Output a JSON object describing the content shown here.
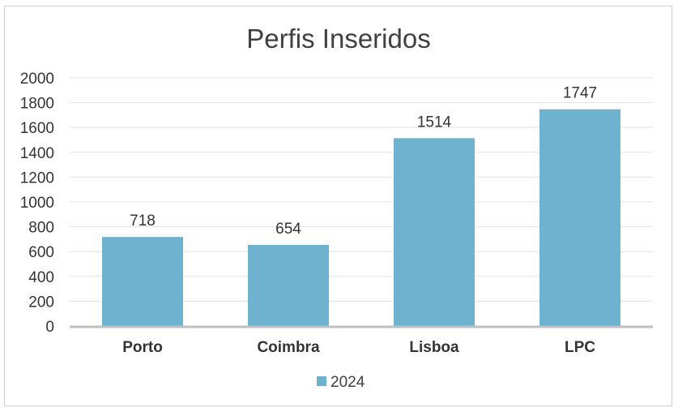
{
  "chart_data": {
    "type": "bar",
    "title": "Perfis Inseridos",
    "categories": [
      "Porto",
      "Coimbra",
      "Lisboa",
      "LPC"
    ],
    "series": [
      {
        "name": "2024",
        "values": [
          718,
          654,
          1514,
          1747
        ],
        "color": "#6fb2cf"
      }
    ],
    "xlabel": "",
    "ylabel": "",
    "ylim": [
      0,
      2000
    ],
    "yticks": [
      0,
      200,
      400,
      600,
      800,
      1000,
      1200,
      1400,
      1600,
      1800,
      2000
    ],
    "grid": true,
    "data_labels": true,
    "legend_position": "bottom"
  }
}
